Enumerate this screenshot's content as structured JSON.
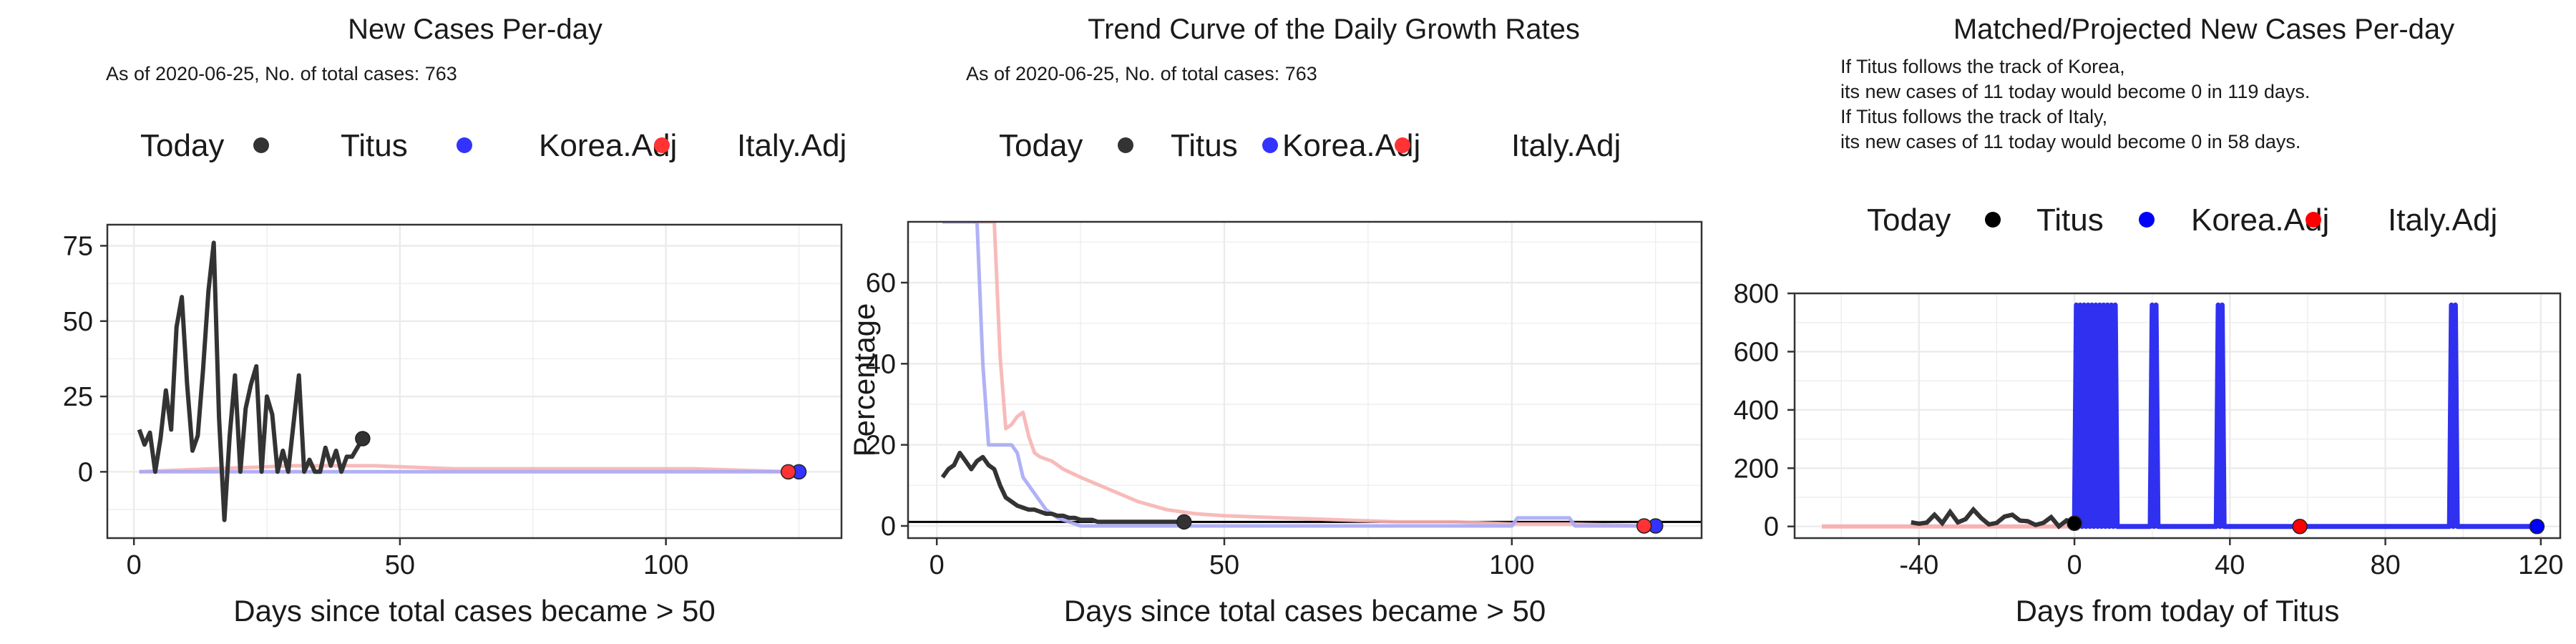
{
  "legend_labels": {
    "today": "Today",
    "titus": "Titus",
    "korea": "Korea.Adj",
    "italy": "Italy.Adj"
  },
  "colors": {
    "titus": "#333333",
    "korea": "#3333ff",
    "italy": "#ff3333",
    "korea_light": "#a8a8f5",
    "italy_light": "#f7b3b3",
    "grid": "#ebebeb",
    "panel_border": "#333333"
  },
  "chart_data": [
    {
      "type": "line",
      "title": "New Cases Per-day",
      "subtitle": "As of 2020-06-25, No. of total cases: 763",
      "xlabel": "Days since total cases became > 50",
      "ylabel": "",
      "xlim": [
        -5,
        133
      ],
      "ylim": [
        -22,
        82
      ],
      "x_ticks": [
        0,
        50,
        100
      ],
      "y_ticks": [
        0,
        25,
        50,
        75
      ],
      "grid": true,
      "legend_position": "top",
      "series": [
        {
          "name": "Titus",
          "x": [
            1,
            2,
            3,
            4,
            5,
            6,
            7,
            8,
            9,
            10,
            11,
            12,
            13,
            14,
            15,
            16,
            17,
            18,
            19,
            20,
            21,
            22,
            23,
            24,
            25,
            26,
            27,
            28,
            29,
            30,
            31,
            32,
            33,
            34,
            35,
            36,
            37,
            38,
            39,
            40,
            41,
            42,
            43
          ],
          "y": [
            14,
            9,
            13,
            0,
            11,
            27,
            14,
            48,
            58,
            29,
            7,
            12,
            34,
            60,
            76,
            18,
            -16,
            12,
            32,
            0,
            21,
            29,
            35,
            0,
            25,
            19,
            0,
            7,
            0,
            16,
            32,
            0,
            4,
            0,
            0,
            8,
            2,
            7,
            0,
            5,
            5,
            8,
            11
          ]
        },
        {
          "name": "Korea.Adj",
          "x": [
            1,
            20,
            40,
            60,
            80,
            100,
            120,
            125
          ],
          "y": [
            0,
            0,
            0,
            0,
            0,
            0,
            0,
            0
          ]
        },
        {
          "name": "Italy.Adj",
          "x": [
            1,
            15,
            30,
            45,
            60,
            75,
            90,
            105,
            123
          ],
          "y": [
            0,
            1,
            2,
            2,
            1,
            1,
            1,
            1,
            0
          ]
        }
      ],
      "today_points": [
        {
          "series": "Titus",
          "x": 43,
          "y": 11
        },
        {
          "series": "Korea.Adj",
          "x": 125,
          "y": 0
        },
        {
          "series": "Italy.Adj",
          "x": 123,
          "y": 0
        }
      ]
    },
    {
      "type": "line",
      "title": "Trend Curve of the Daily Growth Rates",
      "subtitle": "As of 2020-06-25, No. of total cases: 763",
      "xlabel": "Days since total cases became > 50",
      "ylabel": "Percentage",
      "xlim": [
        -5,
        133
      ],
      "ylim": [
        -3,
        75
      ],
      "x_ticks": [
        0,
        50,
        100
      ],
      "y_ticks": [
        0,
        20,
        40,
        60
      ],
      "grid": true,
      "hline": 1,
      "legend_position": "top",
      "series": [
        {
          "name": "Titus",
          "x": [
            1,
            2,
            3,
            4,
            5,
            6,
            7,
            8,
            9,
            10,
            11,
            12,
            13,
            14,
            15,
            16,
            17,
            18,
            19,
            20,
            21,
            22,
            23,
            24,
            25,
            26,
            27,
            28,
            29,
            30,
            31,
            32,
            33,
            34,
            35,
            36,
            37,
            38,
            39,
            40,
            41,
            42,
            43
          ],
          "y": [
            12,
            14,
            15,
            18,
            16,
            14,
            16,
            17,
            15,
            14,
            10,
            7,
            6,
            5,
            4.5,
            4,
            4,
            3.5,
            3,
            3,
            2.5,
            2.5,
            2,
            2,
            1.5,
            1.5,
            1.5,
            1,
            1,
            1,
            1,
            1,
            1,
            1,
            1,
            1,
            1,
            1,
            1,
            1,
            1,
            1,
            1
          ]
        },
        {
          "name": "Korea.Adj",
          "x": [
            1,
            7,
            8,
            9,
            10,
            11,
            12,
            13,
            14,
            15,
            17,
            19,
            21,
            23,
            25,
            30,
            40,
            60,
            80,
            100,
            101,
            110,
            111,
            125
          ],
          "y": [
            75,
            75,
            40,
            20,
            20,
            20,
            20,
            20,
            18,
            12,
            8,
            4,
            2,
            1,
            0,
            0,
            0,
            0,
            0,
            0,
            2,
            2,
            0,
            0
          ]
        },
        {
          "name": "Italy.Adj",
          "x": [
            1,
            10,
            11,
            12,
            13,
            14,
            15,
            16,
            17,
            18,
            20,
            22,
            25,
            30,
            35,
            40,
            45,
            50,
            60,
            70,
            80,
            90,
            100,
            110,
            123
          ],
          "y": [
            75,
            75,
            42,
            24,
            25,
            27,
            28,
            22,
            18,
            17,
            16,
            14,
            12,
            9,
            6,
            4,
            3,
            2.5,
            2,
            1.5,
            1,
            1,
            0.5,
            0.5,
            0
          ]
        }
      ],
      "today_points": [
        {
          "series": "Titus",
          "x": 43,
          "y": 1
        },
        {
          "series": "Korea.Adj",
          "x": 125,
          "y": 0
        },
        {
          "series": "Italy.Adj",
          "x": 123,
          "y": 0
        }
      ]
    },
    {
      "type": "line",
      "title": "Matched/Projected New Cases Per-day",
      "subtitle_lines": [
        "If Titus follows the track of Korea,",
        "its new cases of 11 today would become 0 in 119 days.",
        "If Titus follows the track of Italy,",
        "its new cases of 11 today would become 0 in 58 days."
      ],
      "xlabel": "Days from today of Titus",
      "ylabel": "",
      "xlim": [
        -72,
        125
      ],
      "ylim": [
        -40,
        800
      ],
      "x_ticks": [
        -40,
        0,
        40,
        80,
        120
      ],
      "y_ticks": [
        0,
        200,
        400,
        600,
        800
      ],
      "grid": true,
      "legend_position": "top",
      "series": [
        {
          "name": "Titus",
          "x": [
            -42,
            -40,
            -38,
            -36,
            -34,
            -32,
            -30,
            -28,
            -26,
            -24,
            -22,
            -20,
            -18,
            -16,
            -14,
            -12,
            -10,
            -8,
            -6,
            -4,
            -2,
            0
          ],
          "y": [
            14,
            9,
            13,
            40,
            11,
            50,
            14,
            25,
            58,
            29,
            7,
            12,
            34,
            40,
            20,
            18,
            5,
            12,
            32,
            0,
            21,
            11
          ]
        },
        {
          "name": "Korea.Adj",
          "x": [
            0,
            0.5,
            1,
            1.5,
            2,
            2.5,
            3,
            3.5,
            4,
            4.5,
            5,
            5.5,
            6,
            6.5,
            7,
            7.5,
            8,
            8.5,
            9,
            9.5,
            10,
            10.5,
            11,
            19.5,
            20,
            20.5,
            21,
            21.5,
            22,
            36.5,
            37,
            37.5,
            38,
            38.5,
            39,
            96.5,
            97,
            97.5,
            98,
            98.5,
            99,
            119
          ],
          "y": [
            0,
            760,
            0,
            760,
            0,
            760,
            0,
            760,
            0,
            760,
            0,
            760,
            0,
            760,
            0,
            760,
            0,
            760,
            0,
            760,
            0,
            760,
            0,
            0,
            760,
            0,
            760,
            0,
            0,
            0,
            760,
            0,
            760,
            0,
            0,
            0,
            760,
            0,
            760,
            0,
            0,
            0
          ]
        },
        {
          "name": "Italy.Adj",
          "x": [
            -65,
            -50,
            -30,
            -10,
            0,
            10,
            20,
            30,
            40,
            50,
            58
          ],
          "y": [
            0,
            0,
            0,
            0,
            0,
            0,
            0,
            0,
            0,
            0,
            0
          ]
        }
      ],
      "today_points": [
        {
          "series": "Titus",
          "x": 0,
          "y": 11
        },
        {
          "series": "Korea.Adj",
          "x": 119,
          "y": 0
        },
        {
          "series": "Italy.Adj",
          "x": 58,
          "y": 0
        }
      ]
    }
  ]
}
